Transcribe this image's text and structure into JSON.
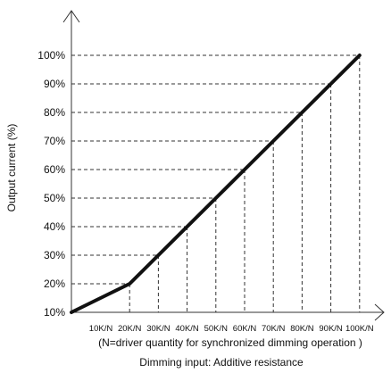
{
  "chart_data": {
    "type": "line",
    "title": "",
    "ylabel": "Output current (%)",
    "xlabel": "Dimming input: Additive resistance",
    "x_note": "(N=driver quantity for synchronized dimming operation )",
    "categories": [
      "10K/N",
      "20K/N",
      "30K/N",
      "40K/N",
      "50K/N",
      "60K/N",
      "70K/N",
      "80K/N",
      "90K/N",
      "100K/N"
    ],
    "x": [
      10,
      20,
      30,
      40,
      50,
      60,
      70,
      80,
      90,
      100
    ],
    "yticks": [
      "10%",
      "20%",
      "30%",
      "40%",
      "50%",
      "60%",
      "70%",
      "80%",
      "90%",
      "100%"
    ],
    "ylim": [
      10,
      100
    ],
    "series": [
      {
        "values": [
          10,
          20,
          30,
          40,
          50,
          60,
          70,
          80,
          90,
          100
        ]
      }
    ],
    "grid": "dashed guides to each data point",
    "legend": "none",
    "colors": {
      "line": "#111111",
      "axis": "#333333",
      "guide": "#333333"
    }
  }
}
